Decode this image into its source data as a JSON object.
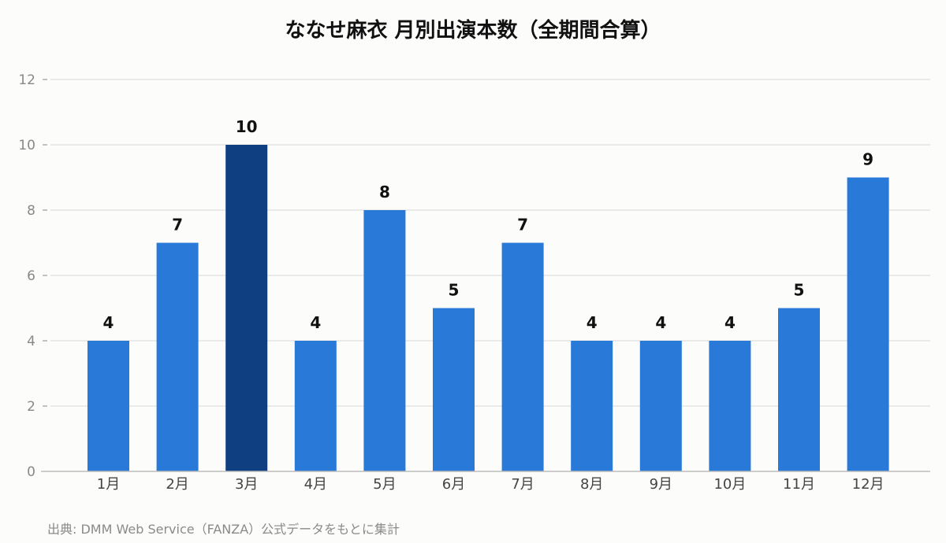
{
  "chart_data": {
    "type": "bar",
    "title": "ななせ麻衣 月別出演本数（全期間合算）",
    "categories": [
      "1月",
      "2月",
      "3月",
      "4月",
      "5月",
      "6月",
      "7月",
      "8月",
      "9月",
      "10月",
      "11月",
      "12月"
    ],
    "values": [
      4,
      7,
      10,
      4,
      8,
      5,
      7,
      4,
      4,
      4,
      5,
      9
    ],
    "highlight_index": 2,
    "ylim": [
      0,
      12
    ],
    "yticks": [
      0,
      2,
      4,
      6,
      8,
      10,
      12
    ],
    "xlabel": "",
    "ylabel": "",
    "grid": true,
    "data_labels": true,
    "colors": {
      "bar": "#2979d8",
      "highlight": "#0f3f80",
      "grid": "#e0e0e0",
      "axis": "#bbbbbb",
      "tick_label": "#888888",
      "category_label": "#444444",
      "data_label": "#111111"
    }
  },
  "source": "出典: DMM Web Service（FANZA）公式データをもとに集計"
}
